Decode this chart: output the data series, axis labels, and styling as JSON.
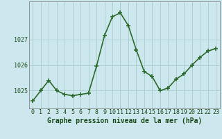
{
  "x": [
    0,
    1,
    2,
    3,
    4,
    5,
    6,
    7,
    8,
    9,
    10,
    11,
    12,
    13,
    14,
    15,
    16,
    17,
    18,
    19,
    20,
    21,
    22,
    23
  ],
  "y": [
    1024.6,
    1025.0,
    1025.4,
    1025.0,
    1024.85,
    1024.8,
    1024.85,
    1024.9,
    1025.95,
    1027.15,
    1027.9,
    1028.05,
    1027.55,
    1026.6,
    1025.75,
    1025.55,
    1025.0,
    1025.1,
    1025.45,
    1025.65,
    1026.0,
    1026.3,
    1026.55,
    1026.65
  ],
  "line_color": "#2d6a2d",
  "marker": "+",
  "marker_size": 5,
  "marker_lw": 1.2,
  "bg_color": "#cce8ee",
  "grid_color": "#aacccc",
  "ylabel_ticks": [
    1025,
    1026,
    1027
  ],
  "ylim": [
    1024.3,
    1028.5
  ],
  "xlim": [
    -0.5,
    23.5
  ],
  "xlabel": "Graphe pression niveau de la mer (hPa)",
  "xlabel_fontsize": 7,
  "tick_fontsize": 6,
  "linewidth": 1.2
}
